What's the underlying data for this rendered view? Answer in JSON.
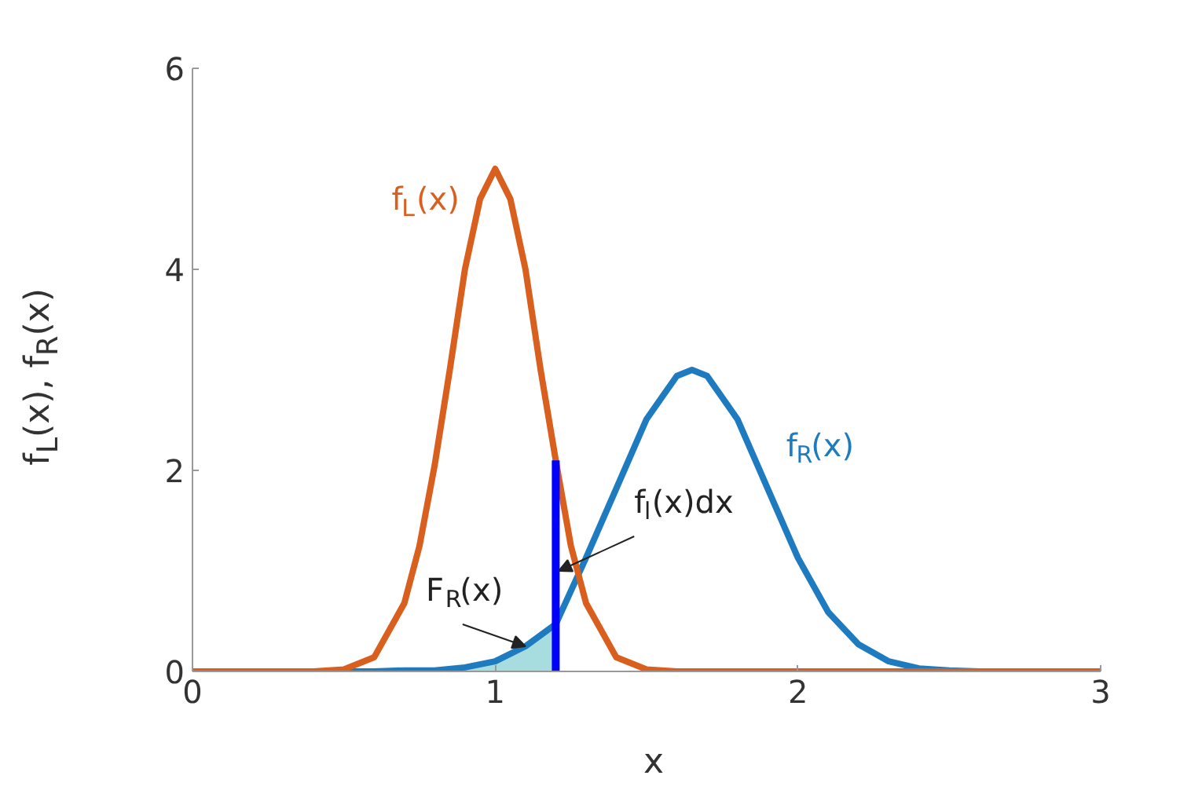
{
  "chart_data": {
    "type": "line",
    "xlabel": "x",
    "ylabel": "f$_{L}$(x), f$_{R}$(x)",
    "xlim": [
      0,
      3
    ],
    "ylim": [
      0,
      6
    ],
    "xticks": [
      0,
      1,
      2,
      3
    ],
    "yticks": [
      0,
      2,
      4,
      6
    ],
    "grid": false,
    "series": [
      {
        "type": "area",
        "color": "#a8dde0",
        "x": [
          0.7,
          0.8,
          0.9,
          1.0,
          1.05,
          1.1,
          1.15,
          1.2
        ],
        "values": [
          0.0,
          0.01,
          0.03,
          0.1,
          0.16,
          0.25,
          0.35,
          0.47
        ]
      },
      {
        "name": "f$_{R}$(x)",
        "color": "#1f7bbf",
        "x": [
          0,
          0.6,
          0.7,
          0.8,
          0.9,
          1.0,
          1.1,
          1.2,
          1.3,
          1.4,
          1.5,
          1.6,
          1.65,
          1.7,
          1.8,
          1.9,
          2.0,
          2.1,
          2.2,
          2.3,
          2.4,
          2.5,
          2.6,
          2.7,
          3
        ],
        "values": [
          0,
          0,
          0.01,
          0.01,
          0.04,
          0.1,
          0.25,
          0.47,
          1.13,
          1.82,
          2.51,
          2.94,
          3,
          2.94,
          2.51,
          1.82,
          1.13,
          0.59,
          0.27,
          0.1,
          0.03,
          0.01,
          0,
          0,
          0
        ]
      },
      {
        "name": "f$_{L}$(x)",
        "color": "#d95f1e",
        "x": [
          0,
          0.4,
          0.5,
          0.6,
          0.7,
          0.75,
          0.8,
          0.85,
          0.9,
          0.95,
          1.0,
          1.05,
          1.1,
          1.15,
          1.2,
          1.25,
          1.3,
          1.4,
          1.5,
          1.6,
          2,
          3
        ],
        "values": [
          0,
          0,
          0.02,
          0.14,
          0.68,
          1.25,
          2.05,
          3.0,
          4.0,
          4.7,
          5,
          4.7,
          4.0,
          3.0,
          2.1,
          1.25,
          0.68,
          0.14,
          0.02,
          0,
          0,
          0
        ]
      },
      {
        "type": "line",
        "color": "#0000ff",
        "x": [
          1.2,
          1.2
        ],
        "values": [
          0,
          2.1
        ]
      }
    ],
    "annotations": [
      {
        "text": "f$_{l}$(x)dx",
        "x": 1.21,
        "y": 1.0
      },
      {
        "text": "F$_{R}$(x)",
        "x": 1.1,
        "y": 0.25
      }
    ]
  }
}
